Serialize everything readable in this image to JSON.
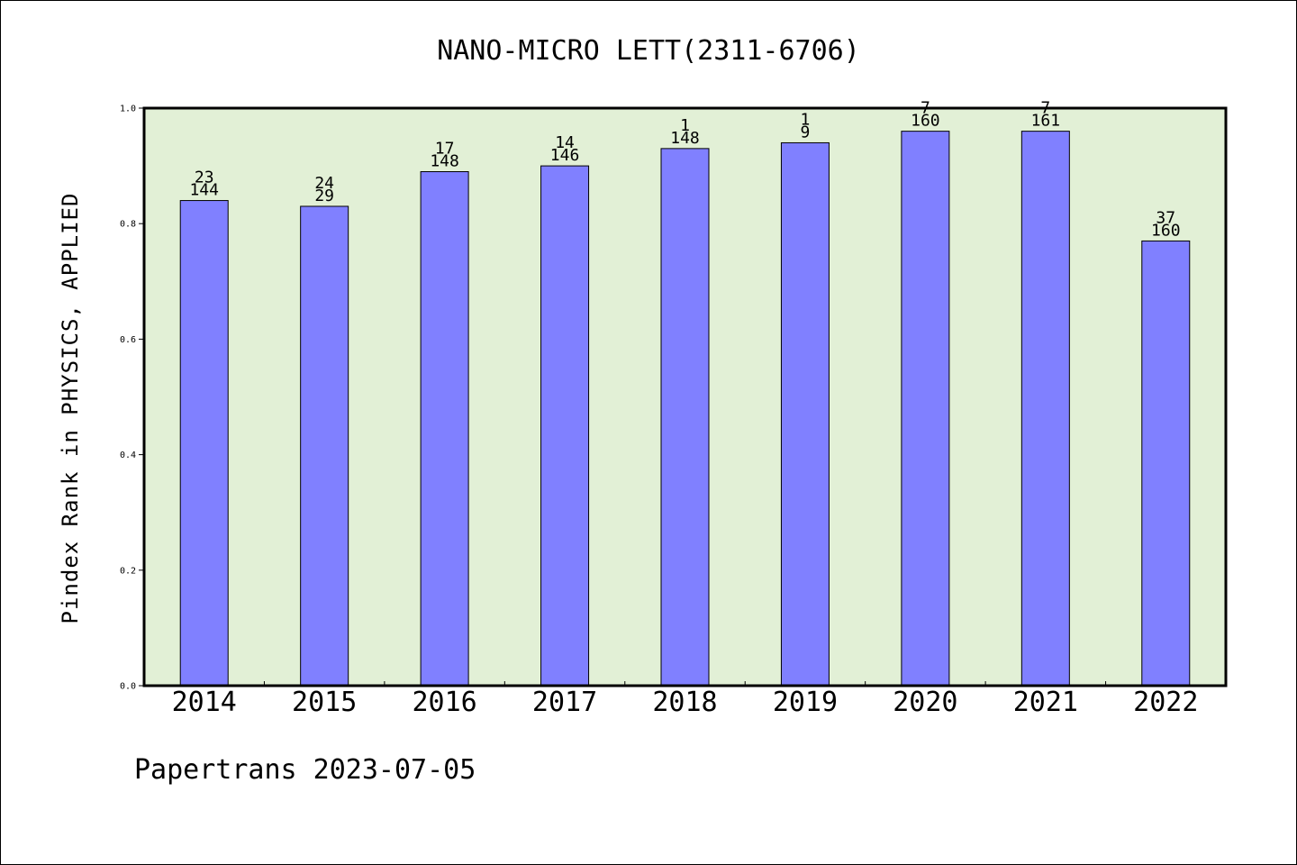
{
  "chart_data": {
    "type": "bar",
    "title": "NANO-MICRO LETT(2311-6706)",
    "xlabel": "",
    "ylabel": "Pindex Rank in PHYSICS, APPLIED",
    "ylim": [
      0,
      1.0
    ],
    "yticks": [
      "0.0",
      "0.2",
      "0.4",
      "0.6",
      "0.8",
      "1.0"
    ],
    "categories": [
      "2014",
      "2015",
      "2016",
      "2017",
      "2018",
      "2019",
      "2020",
      "2021",
      "2022"
    ],
    "values": [
      0.84,
      0.83,
      0.89,
      0.9,
      0.93,
      0.94,
      0.96,
      0.96,
      0.77
    ],
    "rank_labels": [
      "23",
      "24",
      "17",
      "14",
      "1",
      "1",
      "7",
      "7",
      "37"
    ],
    "total_labels": [
      "144",
      "29",
      "148",
      "146",
      "148",
      "9",
      "160",
      "161",
      "160"
    ],
    "grid": false,
    "colors": {
      "bar": "#8080ff",
      "plot_background": "#e2f0d6",
      "axis": "#000000"
    }
  },
  "footer": {
    "text": "Papertrans 2023-07-05"
  }
}
